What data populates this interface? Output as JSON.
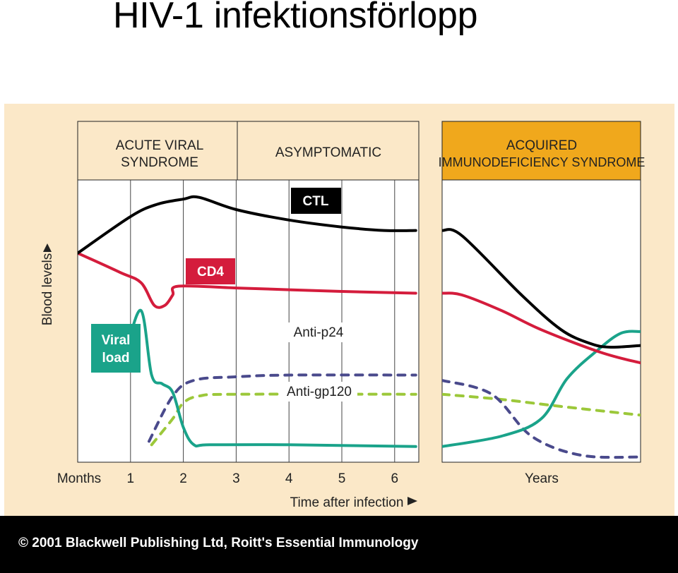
{
  "slide": {
    "title": "HIV-1 infektionsförlopp",
    "copyright": "© 2001 Blackwell Publishing Ltd, Roitt's Essential Immunology"
  },
  "colors": {
    "panel_background": "#fbe8c8",
    "plot_background": "#ffffff",
    "header_acute_asymptomatic": "#fbe8c8",
    "header_aids": "#f0a81c",
    "ctl": "#000000",
    "cd4": "#d41c3c",
    "viral_load": "#1aa38a",
    "anti_p24": "#4a4a8c",
    "anti_gp120": "#9cc83a"
  },
  "chart_data": {
    "type": "line",
    "ylabel": "Blood levels",
    "xlabel": "Time after infection",
    "grid": "vertical lines at each month",
    "phases": [
      {
        "id": "acute",
        "label_lines": [
          "ACUTE VIRAL",
          "SYNDROME"
        ]
      },
      {
        "id": "asymptomatic",
        "label_lines": [
          "ASYMPTOMATIC"
        ]
      },
      {
        "id": "aids",
        "label_lines": [
          "ACQUIRED",
          "IMMUNODEFICIENCY SYNDROME"
        ]
      }
    ],
    "months_axis": {
      "unit_label": "Months",
      "ticks": [
        "1",
        "2",
        "3",
        "4",
        "5",
        "6"
      ],
      "range": [
        0,
        6.4
      ]
    },
    "years_axis": {
      "unit_label": "Years",
      "range": [
        0,
        1
      ]
    },
    "y_range": [
      0,
      100
    ],
    "series": [
      {
        "key": "ctl",
        "name": "CTL",
        "label_style": "box",
        "style": "solid",
        "months": [
          [
            0,
            50
          ],
          [
            1,
            71
          ],
          [
            1.5,
            78
          ],
          [
            2,
            81
          ],
          [
            2.3,
            82
          ],
          [
            3,
            75
          ],
          [
            4,
            69
          ],
          [
            5,
            65
          ],
          [
            5.8,
            63
          ],
          [
            6.4,
            63
          ]
        ],
        "years": [
          [
            0,
            63
          ],
          [
            0.1,
            60
          ],
          [
            0.4,
            26
          ],
          [
            0.6,
            6
          ],
          [
            0.75,
            -2
          ],
          [
            0.85,
            -4
          ],
          [
            1,
            -3
          ]
        ]
      },
      {
        "key": "cd4",
        "name": "CD4",
        "label_style": "box",
        "style": "solid",
        "months": [
          [
            0,
            50
          ],
          [
            0.8,
            39
          ],
          [
            1.2,
            33
          ],
          [
            1.45,
            20
          ],
          [
            1.65,
            20
          ],
          [
            1.8,
            26
          ],
          [
            1.9,
            31
          ],
          [
            3,
            30
          ],
          [
            4,
            29
          ],
          [
            5,
            28
          ],
          [
            6.4,
            27
          ]
        ],
        "years": [
          [
            0,
            27
          ],
          [
            0.1,
            26
          ],
          [
            0.3,
            17
          ],
          [
            0.5,
            6
          ],
          [
            0.8,
            -7
          ],
          [
            1,
            -13
          ]
        ]
      },
      {
        "key": "viral_load",
        "name": "Viral load",
        "label_lines": [
          "Viral",
          "load"
        ],
        "label_style": "box",
        "style": "solid",
        "months": [
          [
            0.7,
            -5
          ],
          [
            0.9,
            -5
          ],
          [
            1.2,
            17
          ],
          [
            1.4,
            -20
          ],
          [
            1.6,
            -25
          ],
          [
            1.8,
            -30
          ],
          [
            2,
            -50
          ],
          [
            2.2,
            -60
          ],
          [
            2.5,
            -60
          ],
          [
            4,
            -60
          ],
          [
            6.4,
            -61
          ]
        ],
        "years": [
          [
            0,
            -61
          ],
          [
            0.3,
            -55
          ],
          [
            0.5,
            -45
          ],
          [
            0.63,
            -22
          ],
          [
            0.78,
            -6
          ],
          [
            0.9,
            4
          ],
          [
            1,
            5
          ]
        ]
      },
      {
        "key": "anti_p24",
        "name": "Anti-p24",
        "label_style": "text",
        "style": "dashed",
        "months": [
          [
            1.35,
            -58
          ],
          [
            1.8,
            -32
          ],
          [
            2.2,
            -23
          ],
          [
            3,
            -21
          ],
          [
            4,
            -20
          ],
          [
            6.4,
            -20
          ]
        ],
        "years": [
          [
            0,
            -23
          ],
          [
            0.25,
            -31
          ],
          [
            0.45,
            -55
          ],
          [
            0.7,
            -66
          ],
          [
            1,
            -67
          ]
        ]
      },
      {
        "key": "anti_gp120",
        "name": "Anti-gp120",
        "label_style": "text",
        "style": "dashed",
        "months": [
          [
            1.4,
            -60
          ],
          [
            1.8,
            -45
          ],
          [
            2,
            -36
          ],
          [
            2.3,
            -32
          ],
          [
            3,
            -31
          ],
          [
            6.4,
            -31
          ]
        ],
        "years": [
          [
            0,
            -31
          ],
          [
            0.3,
            -34
          ],
          [
            0.6,
            -38
          ],
          [
            1,
            -43
          ]
        ]
      }
    ],
    "annotations": [
      {
        "text": "Anti-p24",
        "series": "anti_p24"
      },
      {
        "text": "Anti-gp120",
        "series": "anti_gp120"
      }
    ]
  }
}
